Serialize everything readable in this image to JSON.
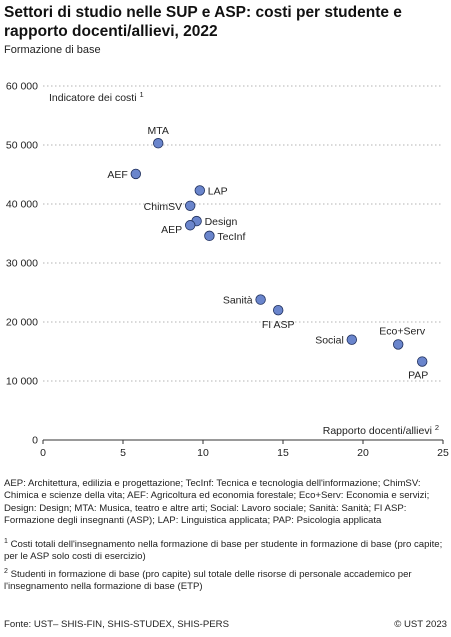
{
  "header": {
    "title": "Settori di studio nelle SUP e ASP: costi per studente e rapporto docenti/allievi, 2022",
    "subtitle": "Formazione di base"
  },
  "chart_data": {
    "type": "scatter",
    "ylabel": "Indicatore dei costi 1",
    "xlabel": "Rapporto docenti/allievi 2",
    "xlim": [
      0,
      25
    ],
    "ylim": [
      0,
      60000
    ],
    "xticks": [
      "0",
      "5",
      "10",
      "15",
      "20",
      "25"
    ],
    "yticks": [
      "0",
      "10 000",
      "20 000",
      "30 000",
      "40 000",
      "50 000",
      "60 000"
    ],
    "grid": "horizontal-dotted",
    "point_color": "#6a85cc",
    "points": [
      {
        "label": "MTA",
        "x": 7.2,
        "y": 50300
      },
      {
        "label": "AEF",
        "x": 5.8,
        "y": 45100
      },
      {
        "label": "LAP",
        "x": 9.8,
        "y": 42300
      },
      {
        "label": "ChimSV",
        "x": 9.2,
        "y": 39700
      },
      {
        "label": "Design",
        "x": 9.6,
        "y": 37100
      },
      {
        "label": "AEP",
        "x": 9.2,
        "y": 36400
      },
      {
        "label": "TecInf",
        "x": 10.4,
        "y": 34600
      },
      {
        "label": "Sanità",
        "x": 13.6,
        "y": 23800
      },
      {
        "label": "FI ASP",
        "x": 14.7,
        "y": 22000
      },
      {
        "label": "Social",
        "x": 19.3,
        "y": 17000
      },
      {
        "label": "Eco+Serv",
        "x": 22.2,
        "y": 16200
      },
      {
        "label": "PAP",
        "x": 23.7,
        "y": 13300
      }
    ]
  },
  "legend_text": "AEP: Architettura, edilizia e progettazione; TecInf: Tecnica e tecnologia dell'informazione; ChimSV: Chimica e scienze della vita; AEF: Agricoltura ed economia forestale; Eco+Serv: Economia e servizi; Design: Design; MTA: Musica, teatro e altre arti; Social: Lavoro sociale; Sanità: Sanità; FI ASP: Formazione degli insegnanti (ASP); LAP: Linguistica applicata; PAP: Psicologia applicata",
  "footnotes": [
    {
      "mark": "1",
      "text": "Costi totali dell'insegnamento nella formazione di base per studente in formazione di base (pro capite; per le ASP solo costi di esercizio)"
    },
    {
      "mark": "2",
      "text": "Studenti in formazione di base (pro capite) sul totale delle risorse di personale accademico per l'insegnamento nella formazione di base (ETP)"
    }
  ],
  "source": "Fonte: UST– SHIS-FIN, SHIS-STUDEX, SHIS-PERS",
  "copyright": "© UST 2023"
}
